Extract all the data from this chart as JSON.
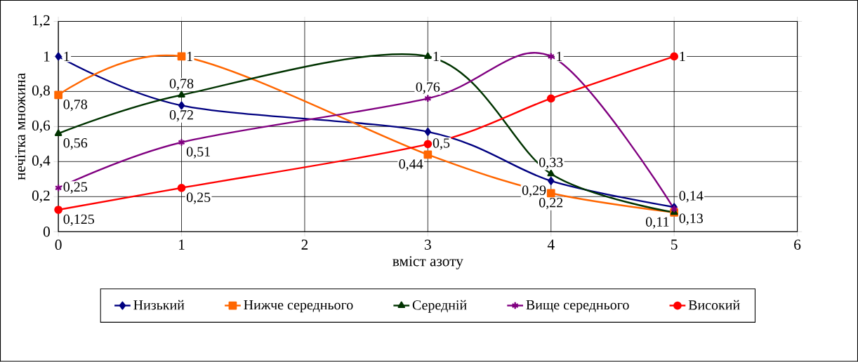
{
  "chart_data": {
    "type": "line",
    "xlabel": "вміст азоту",
    "ylabel": "нечітка множина",
    "x": [
      0,
      1,
      3,
      4,
      5
    ],
    "series": [
      {
        "name": "Низький",
        "color": "#000080",
        "marker": "diamond",
        "values": [
          1,
          0.72,
          0.57,
          0.29,
          0.14
        ],
        "value_labels": [
          "1",
          "0,72",
          null,
          "0,29",
          "0,14"
        ]
      },
      {
        "name": "Нижче середнього",
        "color": "#ff6600",
        "marker": "square",
        "values": [
          0.78,
          1,
          0.44,
          0.22,
          0.11
        ],
        "value_labels": [
          "0,78",
          "1",
          "0,44",
          "0,22",
          "0,11"
        ]
      },
      {
        "name": "Середній",
        "color": "#003300",
        "marker": "triangle",
        "values": [
          0.56,
          0.78,
          1,
          0.33,
          0.11
        ],
        "value_labels": [
          "0,56",
          "0,78",
          "1",
          "0,33",
          null
        ]
      },
      {
        "name": "Вище середнього",
        "color": "#800080",
        "marker": "cross",
        "values": [
          0.25,
          0.51,
          0.76,
          1,
          0.13
        ],
        "value_labels": [
          "0,25",
          "0,51",
          "0,76",
          "1",
          "0,13"
        ]
      },
      {
        "name": "Високий",
        "color": "#ff0000",
        "marker": "circle",
        "values": [
          0.125,
          0.25,
          0.5,
          0.76,
          1
        ],
        "value_labels": [
          "0,125",
          "0,25",
          "0,5",
          null,
          "1"
        ]
      }
    ],
    "xlim": [
      0,
      6
    ],
    "xticks": [
      0,
      1,
      2,
      3,
      4,
      5,
      6
    ],
    "ylim": [
      0,
      1.2
    ],
    "yticks": [
      0,
      {
        "value": 0.2,
        "label": "0,2"
      },
      {
        "value": 0.4,
        "label": "0,4"
      },
      {
        "value": 0.6,
        "label": "0,6"
      },
      {
        "value": 0.8,
        "label": "0,8"
      },
      1,
      {
        "value": 1.2,
        "label": "1,2"
      }
    ],
    "grid": true,
    "legend": "bottom",
    "line_style": "solid"
  }
}
